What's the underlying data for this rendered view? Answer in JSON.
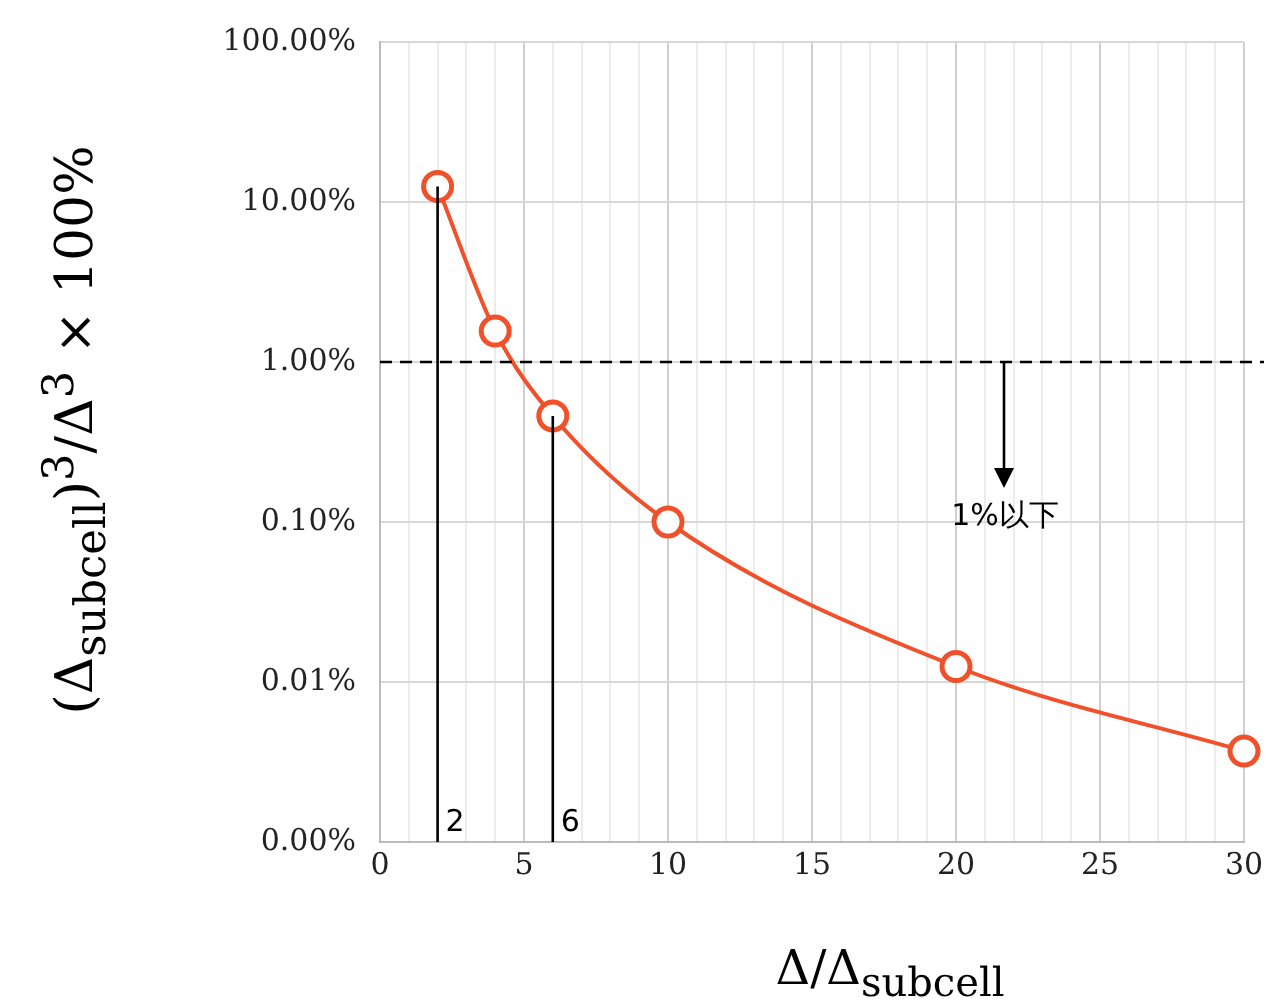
{
  "chart_data": {
    "type": "line",
    "xlabel": "Δ/Δ$_{subcell}$",
    "ylabel": "(Δ$_{subcell}$)$^{3}$/Δ$^{3}$ × 100%",
    "x": [
      2,
      4,
      6,
      10,
      20,
      30
    ],
    "series": [
      {
        "color": "#f0502a",
        "values": [
          12.5,
          1.56,
          0.46,
          0.1,
          0.0125,
          0.0037
        ]
      }
    ],
    "log": "y",
    "xlim": [
      0,
      30
    ],
    "xticks": [
      0,
      {
        "value": 1,
        "label": null
      },
      {
        "value": 2,
        "label": null
      },
      {
        "value": 3,
        "label": null
      },
      {
        "value": 4,
        "label": null
      },
      5,
      {
        "value": 6,
        "label": null
      },
      {
        "value": 7,
        "label": null
      },
      {
        "value": 8,
        "label": null
      },
      {
        "value": 9,
        "label": null
      },
      10,
      {
        "value": 11,
        "label": null
      },
      {
        "value": 12,
        "label": null
      },
      {
        "value": 13,
        "label": null
      },
      {
        "value": 14,
        "label": null
      },
      15,
      {
        "value": 16,
        "label": null
      },
      {
        "value": 17,
        "label": null
      },
      {
        "value": 18,
        "label": null
      },
      {
        "value": 19,
        "label": null
      },
      20,
      {
        "value": 21,
        "label": null
      },
      {
        "value": 22,
        "label": null
      },
      {
        "value": 23,
        "label": null
      },
      {
        "value": 24,
        "label": null
      },
      25,
      {
        "value": 26,
        "label": null
      },
      {
        "value": 27,
        "label": null
      },
      {
        "value": 28,
        "label": null
      },
      {
        "value": 29,
        "label": null
      },
      30
    ],
    "ylim": [
      0.001,
      100
    ],
    "yticks": [
      {
        "value": 0.001,
        "label": "0.00%"
      },
      {
        "value": 0.01,
        "label": "0.01%"
      },
      {
        "value": 0.1,
        "label": "0.10%"
      },
      {
        "value": 1,
        "label": "1.00%"
      },
      {
        "value": 10,
        "label": "10.00%"
      },
      {
        "value": 100,
        "label": "100.00%"
      }
    ],
    "grid": true,
    "marker": "circle",
    "line_style": "solid",
    "legend": false,
    "ref_lines": [
      {
        "axis": "y",
        "value": 1,
        "line_style": "dashed",
        "color": "#000000"
      },
      {
        "axis": "x",
        "value": 2,
        "label": "2",
        "color": "#000000"
      },
      {
        "axis": "x",
        "value": 6,
        "label": "6",
        "color": "#000000"
      }
    ],
    "annotations": [
      {
        "text": "1%以下",
        "x": 21.7,
        "y": 1
      }
    ]
  }
}
